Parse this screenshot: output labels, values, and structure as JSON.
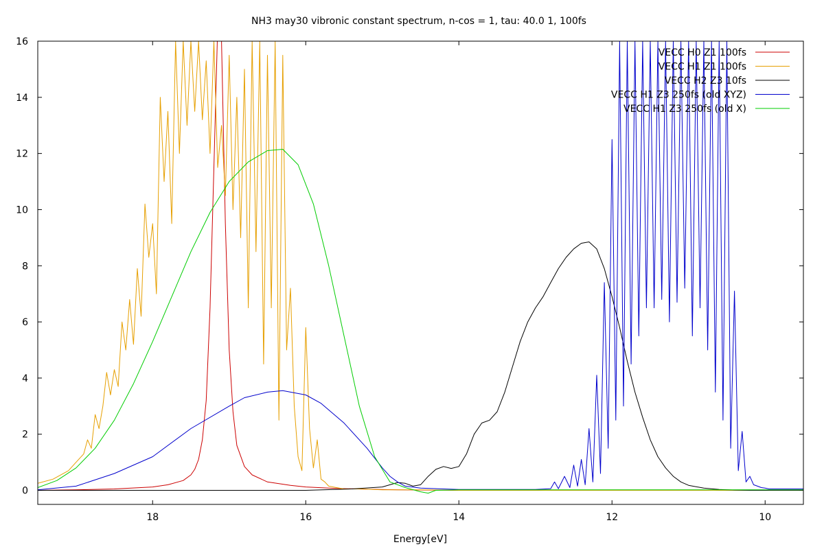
{
  "chart_data": {
    "type": "line",
    "title": "NH3 may30 vibronic constant spectrum, n-cos = 1, tau: 40.0 1, 100fs",
    "xlabel": "Energy[eV]",
    "ylabel": "",
    "xlim": [
      19.5,
      9.5
    ],
    "ylim": [
      -0.5,
      16
    ],
    "x_reversed": true,
    "grid": false,
    "legend_position": "top-right",
    "x_ticks": [
      {
        "value": 18,
        "label": "18"
      },
      {
        "value": 16,
        "label": "16"
      },
      {
        "value": 14,
        "label": "14"
      },
      {
        "value": 12,
        "label": "12"
      },
      {
        "value": 10,
        "label": "10"
      }
    ],
    "y_ticks": [
      {
        "value": 0,
        "label": "0"
      },
      {
        "value": 2,
        "label": "2"
      },
      {
        "value": 4,
        "label": "4"
      },
      {
        "value": 6,
        "label": "6"
      },
      {
        "value": 8,
        "label": "8"
      },
      {
        "value": 10,
        "label": "10"
      },
      {
        "value": 12,
        "label": "12"
      },
      {
        "value": 14,
        "label": "14"
      },
      {
        "value": 16,
        "label": "16"
      }
    ],
    "series": [
      {
        "name": "VECC H0 Z1 100fs",
        "color": "#cc0000",
        "x": [
          19.5,
          19.0,
          18.5,
          18.0,
          17.8,
          17.6,
          17.5,
          17.45,
          17.4,
          17.35,
          17.3,
          17.25,
          17.2,
          17.15,
          17.12,
          17.1,
          17.05,
          17.0,
          16.95,
          16.9,
          16.8,
          16.7,
          16.5,
          16.2,
          16.0,
          15.6,
          15.2,
          14.8,
          14.0,
          9.5
        ],
        "y": [
          0.0,
          0.02,
          0.05,
          0.12,
          0.2,
          0.35,
          0.55,
          0.75,
          1.1,
          1.8,
          3.2,
          6.5,
          11.5,
          16.5,
          17.5,
          16.0,
          9.5,
          5.0,
          2.8,
          1.6,
          0.85,
          0.55,
          0.3,
          0.18,
          0.12,
          0.07,
          0.04,
          0.02,
          0.0,
          0.0
        ]
      },
      {
        "name": "VECC H1 Z1 100fs",
        "color": "#e69f00",
        "x": [
          19.5,
          19.3,
          19.1,
          19.0,
          18.9,
          18.85,
          18.8,
          18.75,
          18.7,
          18.65,
          18.6,
          18.55,
          18.5,
          18.45,
          18.4,
          18.35,
          18.3,
          18.25,
          18.2,
          18.15,
          18.1,
          18.05,
          18.0,
          17.95,
          17.9,
          17.85,
          17.8,
          17.75,
          17.7,
          17.65,
          17.6,
          17.55,
          17.5,
          17.45,
          17.4,
          17.35,
          17.3,
          17.25,
          17.2,
          17.15,
          17.1,
          17.05,
          17.0,
          16.95,
          16.9,
          16.85,
          16.8,
          16.75,
          16.7,
          16.65,
          16.6,
          16.55,
          16.5,
          16.45,
          16.4,
          16.35,
          16.3,
          16.25,
          16.2,
          16.15,
          16.1,
          16.05,
          16.0,
          15.95,
          15.9,
          15.85,
          15.8,
          15.75,
          15.7,
          15.6,
          15.5,
          15.3,
          15.0,
          14.5,
          14.0,
          9.5
        ],
        "y": [
          0.25,
          0.4,
          0.7,
          1.0,
          1.3,
          1.8,
          1.5,
          2.7,
          2.2,
          3.0,
          4.2,
          3.4,
          4.3,
          3.7,
          6.0,
          5.0,
          6.8,
          5.2,
          7.9,
          6.2,
          10.2,
          8.3,
          9.5,
          7.0,
          14.0,
          11.0,
          13.5,
          9.5,
          16.0,
          12.0,
          16.0,
          13.0,
          16.0,
          13.5,
          16.0,
          13.2,
          15.3,
          12.0,
          16.0,
          11.5,
          13.0,
          10.5,
          15.5,
          10.0,
          14.0,
          9.0,
          15.0,
          6.5,
          16.0,
          8.5,
          16.0,
          4.5,
          15.5,
          6.5,
          16.0,
          2.5,
          15.5,
          5.0,
          7.2,
          3.0,
          1.2,
          0.7,
          5.8,
          2.2,
          0.8,
          1.8,
          0.4,
          0.3,
          0.15,
          0.1,
          0.05,
          0.05,
          0.02,
          0.02,
          0.0,
          0.0
        ]
      },
      {
        "name": "VECC H2 Z3 10fs",
        "color": "#000000",
        "x": [
          19.5,
          16.0,
          15.4,
          15.0,
          14.9,
          14.8,
          14.7,
          14.6,
          14.5,
          14.4,
          14.3,
          14.2,
          14.1,
          14.0,
          13.9,
          13.8,
          13.7,
          13.6,
          13.5,
          13.4,
          13.3,
          13.2,
          13.1,
          13.0,
          12.9,
          12.8,
          12.7,
          12.6,
          12.5,
          12.4,
          12.3,
          12.2,
          12.1,
          12.0,
          11.9,
          11.8,
          11.7,
          11.6,
          11.5,
          11.4,
          11.3,
          11.2,
          11.1,
          11.0,
          10.8,
          10.6,
          10.4,
          10.2,
          10.0,
          9.5
        ],
        "y": [
          0.0,
          0.0,
          0.05,
          0.12,
          0.2,
          0.28,
          0.25,
          0.15,
          0.2,
          0.5,
          0.75,
          0.85,
          0.78,
          0.85,
          1.3,
          2.0,
          2.4,
          2.5,
          2.8,
          3.5,
          4.4,
          5.3,
          6.0,
          6.5,
          6.9,
          7.4,
          7.9,
          8.3,
          8.6,
          8.8,
          8.85,
          8.6,
          7.9,
          6.9,
          5.8,
          4.6,
          3.5,
          2.6,
          1.8,
          1.2,
          0.8,
          0.5,
          0.3,
          0.18,
          0.08,
          0.03,
          0.01,
          0.0,
          0.0,
          0.0
        ]
      },
      {
        "name": "VECC H1 Z3 250fs (old XYZ)",
        "color": "#0000cc",
        "x": [
          19.5,
          19.0,
          18.5,
          18.0,
          17.5,
          17.0,
          16.8,
          16.5,
          16.3,
          16.0,
          15.8,
          15.5,
          15.2,
          15.0,
          14.9,
          14.8,
          14.7,
          14.5,
          14.0,
          13.0,
          12.8,
          12.75,
          12.7,
          12.62,
          12.55,
          12.5,
          12.45,
          12.4,
          12.35,
          12.3,
          12.25,
          12.2,
          12.15,
          12.1,
          12.05,
          12.0,
          11.95,
          11.9,
          11.85,
          11.8,
          11.75,
          11.7,
          11.65,
          11.6,
          11.55,
          11.5,
          11.45,
          11.4,
          11.35,
          11.3,
          11.25,
          11.2,
          11.15,
          11.1,
          11.05,
          11.0,
          10.95,
          10.9,
          10.85,
          10.8,
          10.75,
          10.7,
          10.65,
          10.6,
          10.55,
          10.5,
          10.45,
          10.4,
          10.35,
          10.3,
          10.25,
          10.2,
          10.15,
          10.1,
          10.05,
          10.0,
          9.95,
          9.9,
          9.5
        ],
        "y": [
          0.02,
          0.15,
          0.6,
          1.2,
          2.2,
          3.0,
          3.3,
          3.5,
          3.55,
          3.4,
          3.1,
          2.4,
          1.5,
          0.8,
          0.5,
          0.3,
          0.15,
          0.08,
          0.03,
          0.03,
          0.06,
          0.3,
          0.06,
          0.5,
          0.1,
          0.9,
          0.15,
          1.1,
          0.2,
          2.2,
          0.3,
          4.1,
          0.6,
          7.4,
          1.5,
          12.5,
          2.5,
          16.0,
          3.0,
          16.0,
          4.5,
          16.0,
          5.5,
          16.0,
          6.5,
          16.0,
          6.5,
          16.0,
          6.8,
          16.0,
          6.0,
          16.0,
          6.7,
          16.0,
          7.2,
          16.0,
          5.5,
          16.0,
          6.5,
          16.0,
          5.0,
          16.0,
          3.5,
          16.0,
          2.5,
          16.0,
          1.5,
          7.1,
          0.7,
          2.1,
          0.3,
          0.5,
          0.2,
          0.15,
          0.1,
          0.08,
          0.05,
          0.05,
          0.05
        ]
      },
      {
        "name": "VECC H1 Z3 250fs (old X)",
        "color": "#00cc00",
        "x": [
          19.5,
          19.25,
          19.0,
          18.75,
          18.5,
          18.25,
          18.0,
          17.75,
          17.5,
          17.25,
          17.0,
          16.75,
          16.5,
          16.3,
          16.1,
          15.9,
          15.7,
          15.5,
          15.3,
          15.1,
          14.9,
          14.7,
          14.5,
          14.4,
          14.3,
          14.0,
          9.5
        ],
        "y": [
          0.1,
          0.35,
          0.8,
          1.5,
          2.5,
          3.8,
          5.3,
          6.9,
          8.5,
          9.9,
          11.0,
          11.7,
          12.1,
          12.15,
          11.6,
          10.2,
          8.0,
          5.5,
          3.0,
          1.2,
          0.3,
          0.1,
          -0.05,
          -0.1,
          0.0,
          0.02,
          0.02
        ]
      }
    ]
  }
}
